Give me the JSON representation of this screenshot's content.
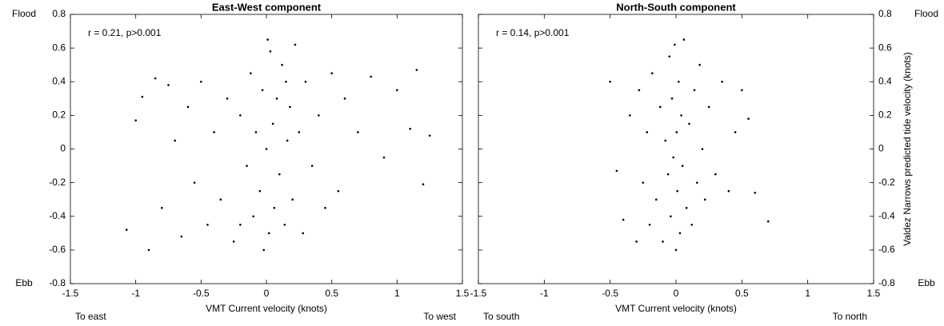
{
  "chart_data": [
    {
      "type": "scatter",
      "title": "East-West component",
      "xlabel": "VMT Current velocity (knots)",
      "annotation": "r = 0.21, p>0.001",
      "x_end_labels": [
        "To east",
        "To west"
      ],
      "y_end_labels": [
        "Ebb",
        "Flood"
      ],
      "yaxis_side": "left",
      "color": "#000000",
      "xlim": [
        -1.5,
        1.5
      ],
      "ylim": [
        -0.8,
        0.8
      ],
      "xticks": [
        -1.5,
        -1,
        -0.5,
        0,
        0.5,
        1,
        1.5
      ],
      "yticks": [
        -0.8,
        -0.6,
        -0.4,
        -0.2,
        0,
        0.2,
        0.4,
        0.6,
        0.8
      ],
      "x": [
        -1.07,
        -1.0,
        -0.95,
        -0.9,
        -0.85,
        -0.8,
        -0.75,
        -0.7,
        -0.65,
        -0.6,
        -0.55,
        -0.5,
        -0.45,
        -0.4,
        -0.35,
        -0.3,
        -0.25,
        -0.2,
        -0.15,
        -0.12,
        -0.1,
        -0.08,
        -0.05,
        -0.03,
        0,
        0.02,
        0.03,
        0.05,
        0.06,
        0.08,
        0.1,
        0.12,
        0.14,
        0.16,
        0.18,
        0.2,
        0.22,
        0.25,
        0.28,
        0.3,
        0.35,
        0.4,
        0.45,
        0.5,
        0.55,
        0.6,
        0.7,
        0.8,
        0.9,
        1.0,
        1.1,
        1.15,
        1.2,
        1.25,
        -0.02,
        0.01,
        -0.2,
        0.15
      ],
      "values": [
        -0.48,
        0.17,
        0.31,
        -0.6,
        0.42,
        -0.35,
        0.38,
        0.05,
        -0.52,
        0.25,
        -0.2,
        0.4,
        -0.45,
        0.1,
        -0.3,
        0.3,
        -0.55,
        0.2,
        -0.1,
        0.45,
        -0.4,
        0.1,
        -0.25,
        0.35,
        0,
        -0.5,
        0.58,
        0.15,
        -0.35,
        0.3,
        -0.15,
        0.5,
        -0.45,
        0.05,
        0.25,
        -0.3,
        0.62,
        0.1,
        -0.5,
        0.4,
        -0.1,
        0.2,
        -0.35,
        0.45,
        -0.25,
        0.3,
        0.1,
        0.43,
        -0.05,
        0.35,
        0.12,
        0.47,
        -0.21,
        0.08,
        -0.6,
        0.65,
        -0.45,
        0.4
      ]
    },
    {
      "type": "scatter",
      "title": "North-South component",
      "xlabel": "VMT Current velocity (knots)",
      "ylabel": "Valdez Narrows predicted tide velocity (knots)",
      "annotation": "r = 0.14, p>0.001",
      "x_end_labels": [
        "To south",
        "To north"
      ],
      "y_end_labels": [
        "Ebb",
        "Flood"
      ],
      "yaxis_side": "right",
      "color": "#000000",
      "xlim": [
        -1.5,
        1.5
      ],
      "ylim": [
        -0.8,
        0.8
      ],
      "xticks": [
        -1.5,
        -1,
        -0.5,
        0,
        0.5,
        1,
        1.5
      ],
      "yticks": [
        -0.8,
        -0.6,
        -0.4,
        -0.2,
        0,
        0.2,
        0.4,
        0.6,
        0.8
      ],
      "x": [
        -0.5,
        -0.45,
        -0.4,
        -0.35,
        -0.3,
        -0.28,
        -0.25,
        -0.22,
        -0.2,
        -0.18,
        -0.15,
        -0.12,
        -0.1,
        -0.08,
        -0.06,
        -0.05,
        -0.04,
        -0.03,
        -0.02,
        -0.01,
        0,
        0.005,
        0.01,
        0.02,
        0.03,
        0.04,
        0.05,
        0.06,
        0.08,
        0.1,
        0.12,
        0.14,
        0.16,
        0.18,
        0.2,
        0.22,
        0.25,
        0.3,
        0.35,
        0.4,
        0.45,
        0.5,
        0.55,
        0.6,
        0.7
      ],
      "values": [
        0.4,
        -0.13,
        -0.42,
        0.2,
        -0.55,
        0.35,
        -0.2,
        0.1,
        -0.45,
        0.45,
        -0.3,
        0.25,
        -0.55,
        0.05,
        -0.15,
        0.55,
        -0.4,
        0.3,
        -0.05,
        0.62,
        -0.6,
        0.1,
        -0.25,
        0.4,
        -0.5,
        0.2,
        -0.1,
        0.65,
        -0.35,
        0.15,
        -0.45,
        0.35,
        -0.2,
        0.5,
        0.0,
        -0.3,
        0.25,
        -0.15,
        0.4,
        -0.25,
        0.1,
        0.35,
        0.18,
        -0.26,
        -0.43
      ]
    }
  ]
}
